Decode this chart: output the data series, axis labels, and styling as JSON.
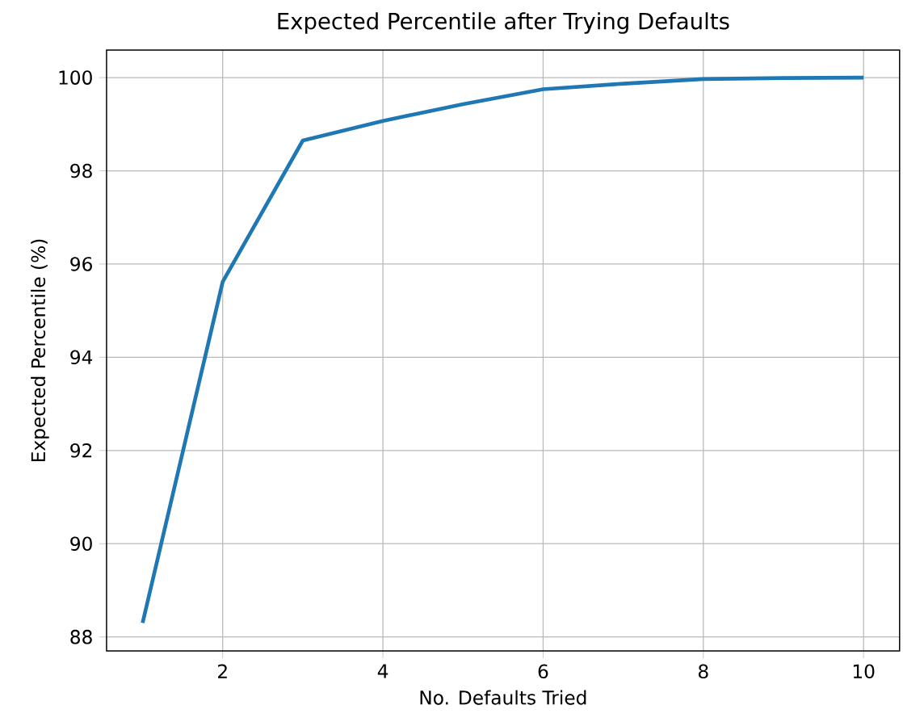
{
  "chart_data": {
    "type": "line",
    "title": "Expected Percentile after Trying Defaults",
    "xlabel": "No. Defaults Tried",
    "ylabel": "Expected Percentile (%)",
    "x": [
      1,
      2,
      3,
      4,
      5,
      6,
      7,
      8,
      9,
      10
    ],
    "series": [
      {
        "color": "#1f77b4",
        "values": [
          88.3,
          95.62,
          98.65,
          99.07,
          99.43,
          99.75,
          99.87,
          99.97,
          99.99,
          100.0
        ]
      }
    ],
    "xlim": [
      0.55,
      10.45
    ],
    "ylim": [
      87.7,
      100.59
    ],
    "xticks": [
      2,
      4,
      6,
      8,
      10
    ],
    "yticks": [
      88,
      90,
      92,
      94,
      96,
      98,
      100
    ],
    "grid": true,
    "line_style": "solid",
    "marker": "none"
  }
}
